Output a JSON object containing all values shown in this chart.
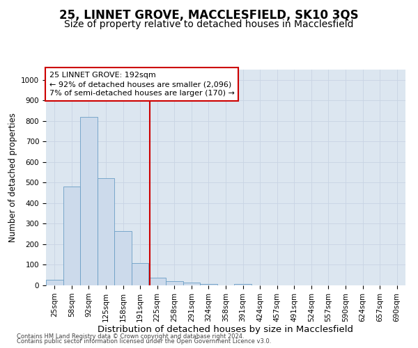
{
  "title1": "25, LINNET GROVE, MACCLESFIELD, SK10 3QS",
  "title2": "Size of property relative to detached houses in Macclesfield",
  "xlabel": "Distribution of detached houses by size in Macclesfield",
  "ylabel": "Number of detached properties",
  "footnote1": "Contains HM Land Registry data © Crown copyright and database right 2024.",
  "footnote2": "Contains public sector information licensed under the Open Government Licence v3.0.",
  "bar_labels": [
    "25sqm",
    "58sqm",
    "92sqm",
    "125sqm",
    "158sqm",
    "191sqm",
    "225sqm",
    "258sqm",
    "291sqm",
    "324sqm",
    "358sqm",
    "391sqm",
    "424sqm",
    "457sqm",
    "491sqm",
    "524sqm",
    "557sqm",
    "590sqm",
    "624sqm",
    "657sqm",
    "690sqm"
  ],
  "bar_values": [
    28,
    480,
    820,
    520,
    265,
    110,
    38,
    20,
    14,
    8,
    0,
    8,
    0,
    0,
    0,
    0,
    0,
    0,
    0,
    0,
    0
  ],
  "bar_color": "#ccdaeb",
  "bar_edge_color": "#6a9ec5",
  "vline_x": 5.55,
  "vline_color": "#cc0000",
  "annotation_line1": "25 LINNET GROVE: 192sqm",
  "annotation_line2": "← 92% of detached houses are smaller (2,096)",
  "annotation_line3": "7% of semi-detached houses are larger (170) →",
  "annotation_box_color": "#ffffff",
  "annotation_box_edge": "#cc0000",
  "ylim": [
    0,
    1050
  ],
  "yticks": [
    0,
    100,
    200,
    300,
    400,
    500,
    600,
    700,
    800,
    900,
    1000
  ],
  "grid_color": "#c8d4e3",
  "background_color": "#dce6f0",
  "title1_fontsize": 12,
  "title2_fontsize": 10,
  "xlabel_fontsize": 9.5,
  "ylabel_fontsize": 8.5,
  "tick_fontsize": 7.5,
  "annotation_fontsize": 8,
  "footnote_fontsize": 6
}
